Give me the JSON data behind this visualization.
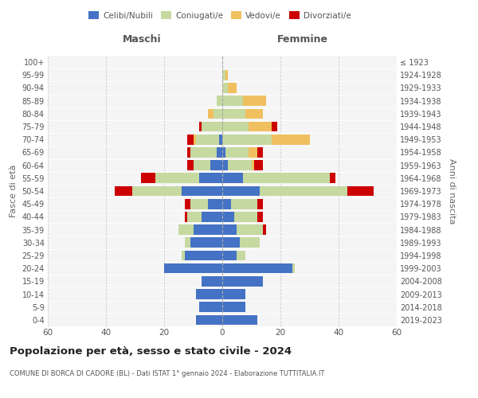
{
  "age_groups": [
    "0-4",
    "5-9",
    "10-14",
    "15-19",
    "20-24",
    "25-29",
    "30-34",
    "35-39",
    "40-44",
    "45-49",
    "50-54",
    "55-59",
    "60-64",
    "65-69",
    "70-74",
    "75-79",
    "80-84",
    "85-89",
    "90-94",
    "95-99",
    "100+"
  ],
  "birth_years": [
    "2019-2023",
    "2014-2018",
    "2009-2013",
    "2004-2008",
    "1999-2003",
    "1994-1998",
    "1989-1993",
    "1984-1988",
    "1979-1983",
    "1974-1978",
    "1969-1973",
    "1964-1968",
    "1959-1963",
    "1954-1958",
    "1949-1953",
    "1944-1948",
    "1939-1943",
    "1934-1938",
    "1929-1933",
    "1924-1928",
    "≤ 1923"
  ],
  "males": {
    "celibi": [
      9,
      8,
      9,
      7,
      20,
      13,
      11,
      10,
      7,
      5,
      14,
      8,
      4,
      2,
      1,
      0,
      0,
      0,
      0,
      0,
      0
    ],
    "coniugati": [
      0,
      0,
      0,
      0,
      0,
      1,
      2,
      5,
      5,
      6,
      17,
      15,
      6,
      9,
      8,
      7,
      3,
      2,
      0,
      0,
      0
    ],
    "vedovi": [
      0,
      0,
      0,
      0,
      0,
      0,
      0,
      0,
      0,
      0,
      0,
      0,
      0,
      0,
      1,
      0,
      2,
      0,
      0,
      0,
      0
    ],
    "divorziati": [
      0,
      0,
      0,
      0,
      0,
      0,
      0,
      0,
      1,
      2,
      6,
      5,
      2,
      1,
      2,
      1,
      0,
      0,
      0,
      0,
      0
    ]
  },
  "females": {
    "nubili": [
      12,
      8,
      8,
      14,
      24,
      5,
      6,
      5,
      4,
      3,
      13,
      7,
      2,
      1,
      0,
      0,
      0,
      0,
      0,
      0,
      0
    ],
    "coniugate": [
      0,
      0,
      0,
      0,
      1,
      3,
      7,
      9,
      8,
      9,
      30,
      30,
      8,
      8,
      17,
      9,
      8,
      7,
      2,
      1,
      0
    ],
    "vedove": [
      0,
      0,
      0,
      0,
      0,
      0,
      0,
      0,
      0,
      0,
      0,
      0,
      1,
      3,
      13,
      8,
      6,
      8,
      3,
      1,
      0
    ],
    "divorziate": [
      0,
      0,
      0,
      0,
      0,
      0,
      0,
      1,
      2,
      2,
      9,
      2,
      3,
      2,
      0,
      2,
      0,
      0,
      0,
      0,
      0
    ]
  },
  "colors": {
    "celibi_nubili": "#4472c4",
    "coniugati": "#c5d9a0",
    "vedovi": "#f0c060",
    "divorziati": "#cc0000"
  },
  "xlim": 60,
  "title": "Popolazione per età, sesso e stato civile - 2024",
  "subtitle": "COMUNE DI BORCA DI CADORE (BL) - Dati ISTAT 1° gennaio 2024 - Elaborazione TUTTITALIA.IT",
  "ylabel_left": "Fasce di età",
  "ylabel_right": "Anni di nascita",
  "legend_labels": [
    "Celibi/Nubili",
    "Coniugati/e",
    "Vedovi/e",
    "Divorziati/e"
  ],
  "maschi_label": "Maschi",
  "femmine_label": "Femmine",
  "bg_color": "#f5f5f5"
}
